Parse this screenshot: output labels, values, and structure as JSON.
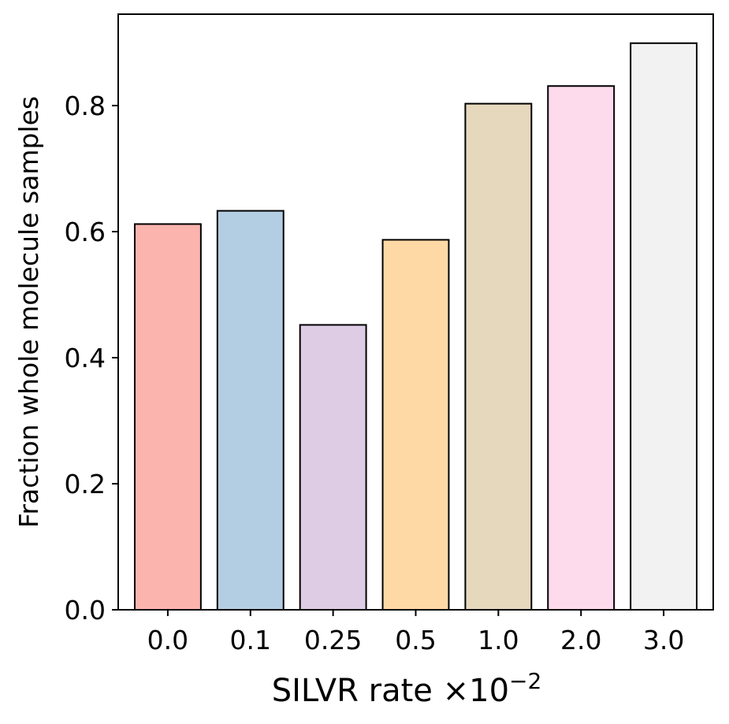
{
  "chart_data": {
    "type": "bar",
    "title": "",
    "xlabel": "SILVR rate ×10",
    "xlabel_exponent": "−2",
    "ylabel": "Fraction whole molecule samples",
    "categories": [
      "0.0",
      "0.1",
      "0.25",
      "0.5",
      "1.0",
      "2.0",
      "3.0"
    ],
    "values": [
      0.612,
      0.633,
      0.452,
      0.587,
      0.803,
      0.831,
      0.899
    ],
    "ylim": [
      0,
      0.945
    ],
    "yticks": [
      0.0,
      0.2,
      0.4,
      0.6,
      0.8
    ],
    "ytick_labels": [
      "0.0",
      "0.2",
      "0.4",
      "0.6",
      "0.8"
    ],
    "bar_colors": [
      "#fbb4ae",
      "#b3cde3",
      "#decbe4",
      "#fed9a6",
      "#e5d8bd",
      "#fddaec",
      "#f2f2f2"
    ],
    "bar_edge_color": "#000000",
    "grid": false,
    "legend": "none"
  }
}
